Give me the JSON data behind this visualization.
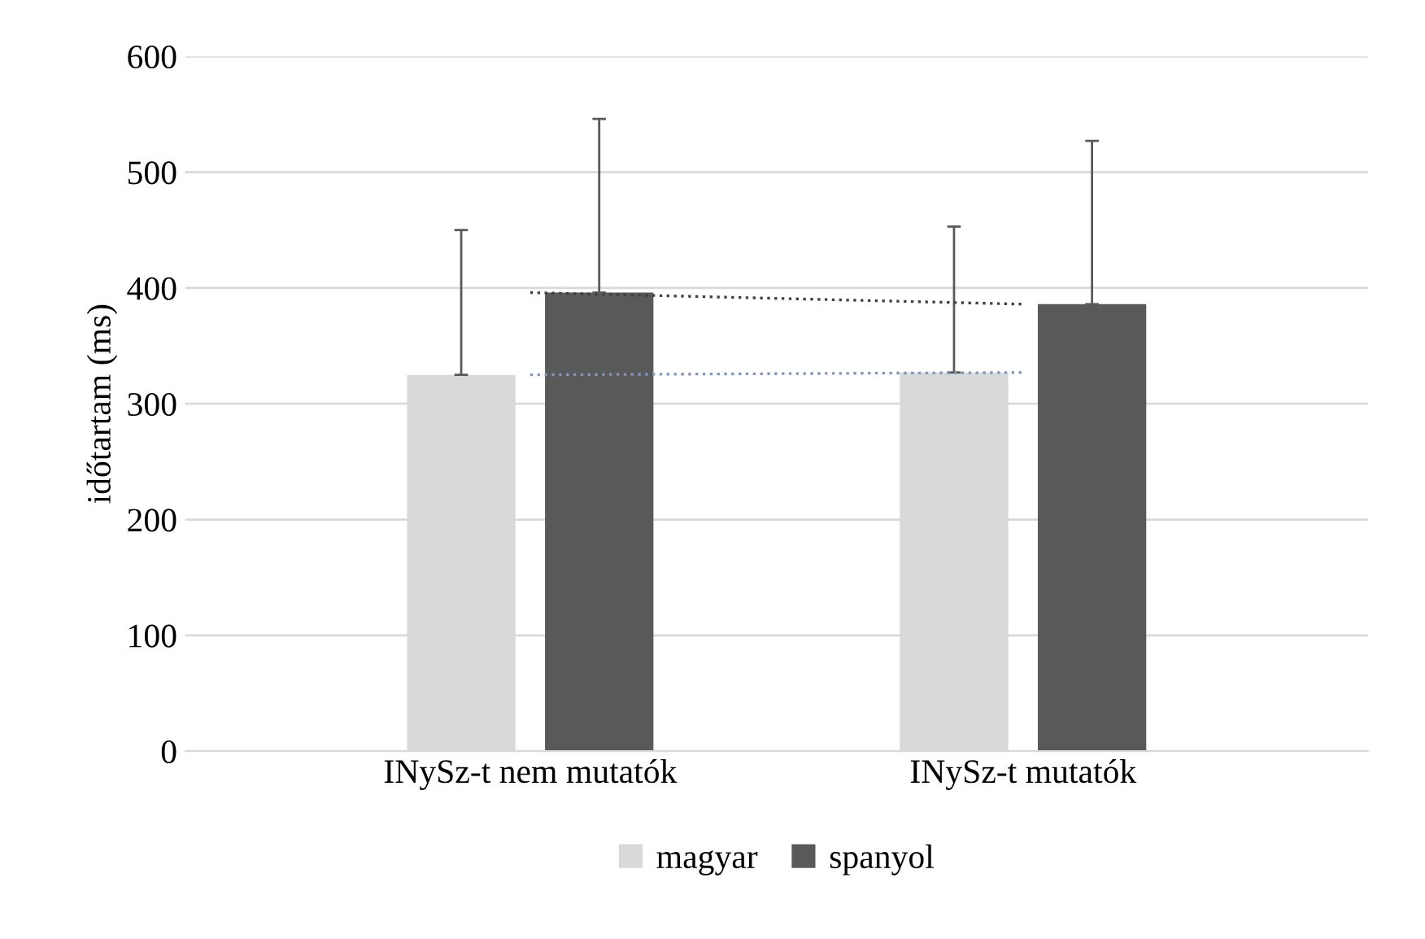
{
  "chart_data": {
    "type": "bar",
    "ylabel": "időtartam (ms)",
    "categories": [
      "INySz-t nem mutatók",
      "INySz-t mutatók"
    ],
    "series": [
      {
        "name": "magyar",
        "color": "#d9d9d9",
        "values": [
          325,
          327
        ],
        "errors": [
          [
            325,
            450
          ],
          [
            327,
            453
          ]
        ]
      },
      {
        "name": "spanyol",
        "color": "#595959",
        "values": [
          396,
          386
        ],
        "errors": [
          [
            396,
            546
          ],
          [
            386,
            527
          ]
        ]
      },
      {
        "type": "line",
        "x": [
          "INySz-t nem mutatók",
          "INySz-t mutatók"
        ],
        "color": "#404040",
        "line_style": "dotted",
        "values": [
          396,
          386
        ]
      },
      {
        "type": "line",
        "x": [
          "INySz-t nem mutatók",
          "INySz-t mutatók"
        ],
        "color": "#7f96c0",
        "line_style": "dotted",
        "values": [
          325,
          327
        ]
      }
    ],
    "ylim": [
      0,
      600
    ],
    "yticks": [
      0,
      100,
      200,
      300,
      400,
      500,
      600
    ],
    "grid": "y",
    "legend": "bottom"
  }
}
